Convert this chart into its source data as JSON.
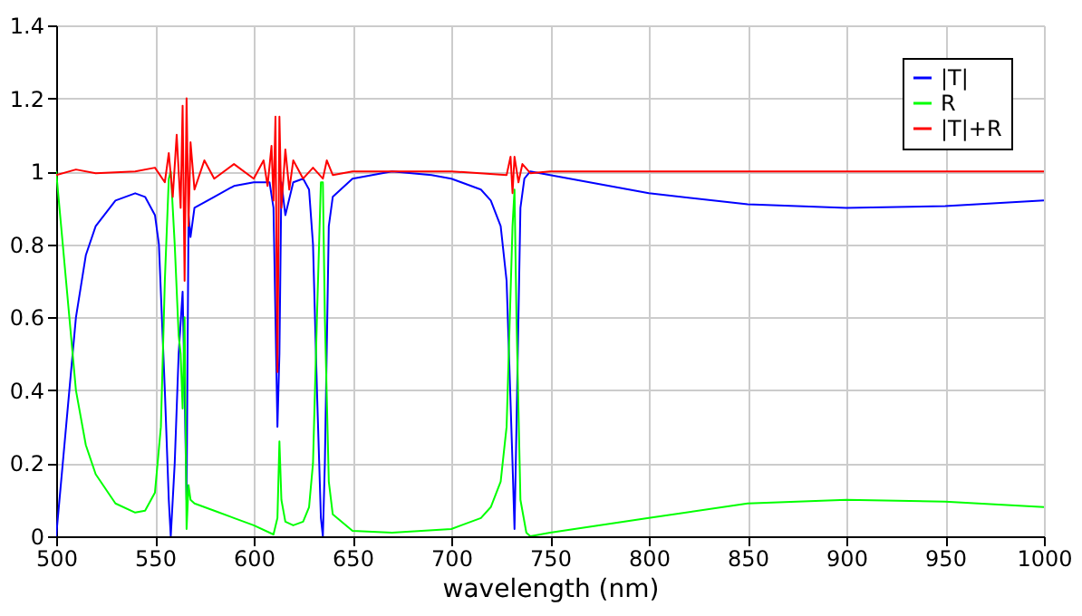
{
  "chart_data": {
    "type": "line",
    "xlabel": "wavelength (nm)",
    "xlim": [
      500,
      1000
    ],
    "xticks": [
      500,
      550,
      600,
      650,
      700,
      750,
      800,
      850,
      900,
      950,
      1000
    ],
    "ylim": [
      0,
      1.4
    ],
    "yticks": [
      0,
      0.2,
      0.4,
      0.6,
      0.8,
      1,
      1.2,
      1.4
    ],
    "grid": true,
    "legend": "top right",
    "series": [
      {
        "name": "|T|",
        "color": "#0000ff",
        "x": [
          500,
          505,
          510,
          515,
          520,
          530,
          540,
          545,
          550,
          552,
          555,
          557,
          558,
          560,
          562,
          564,
          565,
          566,
          567,
          568,
          570,
          580,
          590,
          600,
          608,
          610,
          612,
          613,
          614,
          616,
          620,
          625,
          628,
          630,
          632,
          634,
          635,
          636,
          638,
          640,
          650,
          670,
          690,
          700,
          715,
          720,
          725,
          728,
          731,
          732,
          733,
          735,
          737,
          740,
          750,
          800,
          850,
          900,
          950,
          1000
        ],
        "values": [
          0,
          0.3,
          0.6,
          0.77,
          0.85,
          0.92,
          0.94,
          0.93,
          0.88,
          0.8,
          0.4,
          0.1,
          0,
          0.2,
          0.5,
          0.67,
          0.4,
          0.1,
          0.88,
          0.82,
          0.9,
          0.93,
          0.96,
          0.97,
          0.97,
          0.9,
          0.3,
          0.5,
          0.97,
          0.88,
          0.97,
          0.98,
          0.95,
          0.8,
          0.4,
          0.05,
          0,
          0.2,
          0.85,
          0.93,
          0.98,
          1,
          0.99,
          0.98,
          0.95,
          0.92,
          0.85,
          0.7,
          0.2,
          0.02,
          0.3,
          0.9,
          0.98,
          1,
          0.99,
          0.94,
          0.91,
          0.9,
          0.905,
          0.92
        ]
      },
      {
        "name": "R",
        "color": "#00ff00",
        "x": [
          500,
          505,
          510,
          515,
          520,
          530,
          540,
          545,
          550,
          553,
          555,
          557,
          558,
          560,
          562,
          563,
          564,
          565,
          566,
          567,
          568,
          570,
          580,
          590,
          600,
          610,
          612,
          613,
          614,
          616,
          620,
          625,
          628,
          630,
          632,
          634,
          635,
          636,
          638,
          640,
          650,
          670,
          700,
          715,
          720,
          725,
          728,
          731,
          732,
          733,
          735,
          738,
          740,
          750,
          800,
          850,
          900,
          950,
          1000
        ],
        "values": [
          1,
          0.7,
          0.4,
          0.25,
          0.17,
          0.09,
          0.065,
          0.07,
          0.12,
          0.3,
          0.7,
          0.98,
          1,
          0.8,
          0.55,
          0.5,
          0.35,
          0.6,
          0.02,
          0.14,
          0.1,
          0.09,
          0.07,
          0.05,
          0.03,
          0.005,
          0.05,
          0.26,
          0.1,
          0.04,
          0.03,
          0.04,
          0.08,
          0.2,
          0.6,
          0.97,
          0.97,
          0.6,
          0.15,
          0.06,
          0.015,
          0.01,
          0.02,
          0.05,
          0.08,
          0.15,
          0.3,
          0.85,
          0.95,
          0.6,
          0.1,
          0.01,
          0,
          0.01,
          0.05,
          0.09,
          0.1,
          0.095,
          0.08
        ]
      },
      {
        "name": "|T|+R",
        "color": "#ff0000",
        "x": [
          500,
          510,
          520,
          540,
          550,
          555,
          557,
          559,
          561,
          563,
          564,
          565,
          566,
          567,
          568,
          570,
          575,
          580,
          590,
          600,
          605,
          607,
          609,
          610,
          611,
          612,
          613,
          614,
          616,
          618,
          620,
          625,
          630,
          635,
          637,
          640,
          650,
          700,
          728,
          730,
          731,
          732,
          734,
          736,
          740,
          750,
          1000
        ],
        "values": [
          0.99,
          1.005,
          0.995,
          1,
          1.01,
          0.97,
          1.05,
          0.93,
          1.1,
          0.9,
          1.18,
          0.7,
          1.2,
          0.85,
          1.08,
          0.95,
          1.03,
          0.98,
          1.02,
          0.98,
          1.03,
          0.96,
          1.07,
          0.92,
          1.15,
          0.45,
          1.15,
          0.9,
          1.06,
          0.95,
          1.03,
          0.98,
          1.01,
          0.98,
          1.03,
          0.99,
          1,
          1,
          0.99,
          1.04,
          0.94,
          1.04,
          0.97,
          1.02,
          0.995,
          1,
          1
        ]
      }
    ]
  }
}
